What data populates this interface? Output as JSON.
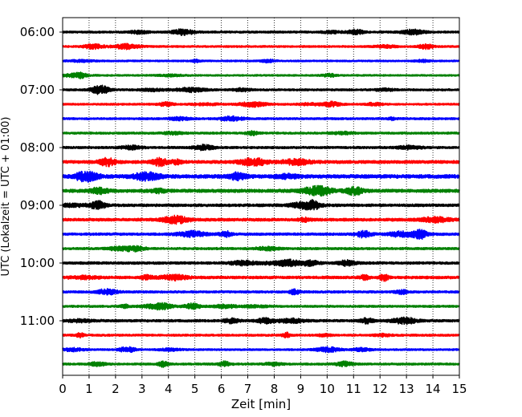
{
  "chart_data": {
    "type": "line",
    "title": "",
    "xlabel": "Zeit  [min]",
    "ylabel": "UTC (Lokalzeit = UTC + 01:00)",
    "xlim": [
      0,
      15
    ],
    "x_ticks": [
      "0",
      "1",
      "2",
      "3",
      "4",
      "5",
      "6",
      "7",
      "8",
      "9",
      "10",
      "11",
      "12",
      "13",
      "14",
      "15"
    ],
    "y_ticks": [
      "06:00",
      "07:00",
      "08:00",
      "09:00",
      "10:00",
      "11:00"
    ],
    "grid": "vertical dotted lines at every minute",
    "trace_interval_minutes": 15,
    "first_trace": "06:00",
    "trace_colors": [
      "#000000",
      "#ff0000",
      "#0000ff",
      "#008000"
    ],
    "traces": [
      {
        "start": "06:00",
        "color": "#000000",
        "amplitude": 1.0
      },
      {
        "start": "06:15",
        "color": "#ff0000",
        "amplitude": 0.9
      },
      {
        "start": "06:30",
        "color": "#0000ff",
        "amplitude": 0.8
      },
      {
        "start": "06:45",
        "color": "#008000",
        "amplitude": 0.8
      },
      {
        "start": "07:00",
        "color": "#000000",
        "amplitude": 1.0
      },
      {
        "start": "07:15",
        "color": "#ff0000",
        "amplitude": 0.9
      },
      {
        "start": "07:30",
        "color": "#0000ff",
        "amplitude": 1.0
      },
      {
        "start": "07:45",
        "color": "#008000",
        "amplitude": 1.0
      },
      {
        "start": "08:00",
        "color": "#000000",
        "amplitude": 1.1
      },
      {
        "start": "08:15",
        "color": "#ff0000",
        "amplitude": 1.5
      },
      {
        "start": "08:30",
        "color": "#0000ff",
        "amplitude": 1.8
      },
      {
        "start": "08:45",
        "color": "#008000",
        "amplitude": 1.6
      },
      {
        "start": "09:00",
        "color": "#000000",
        "amplitude": 1.3
      },
      {
        "start": "09:15",
        "color": "#ff0000",
        "amplitude": 1.4
      },
      {
        "start": "09:30",
        "color": "#0000ff",
        "amplitude": 1.2
      },
      {
        "start": "09:45",
        "color": "#008000",
        "amplitude": 1.1
      },
      {
        "start": "10:00",
        "color": "#000000",
        "amplitude": 1.2
      },
      {
        "start": "10:15",
        "color": "#ff0000",
        "amplitude": 1.3
      },
      {
        "start": "10:30",
        "color": "#0000ff",
        "amplitude": 1.1
      },
      {
        "start": "10:45",
        "color": "#008000",
        "amplitude": 1.0
      },
      {
        "start": "11:00",
        "color": "#000000",
        "amplitude": 1.2
      },
      {
        "start": "11:15",
        "color": "#ff0000",
        "amplitude": 1.0
      },
      {
        "start": "11:30",
        "color": "#0000ff",
        "amplitude": 0.9
      },
      {
        "start": "11:45",
        "color": "#008000",
        "amplitude": 1.0
      }
    ]
  }
}
